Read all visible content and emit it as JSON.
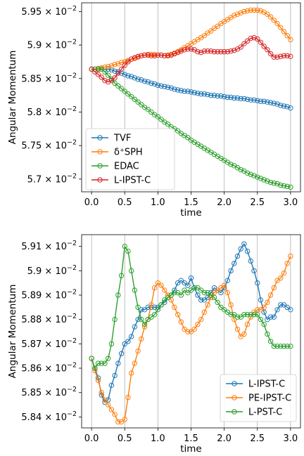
{
  "chart_data": [
    {
      "type": "line",
      "xlabel": "time",
      "ylabel": "Angular Momentum",
      "xlim": [
        -0.15,
        3.15
      ],
      "ylim": [
        0.05681,
        0.05963
      ],
      "x_ticks": [
        0.0,
        0.5,
        1.0,
        1.5,
        2.0,
        2.5,
        3.0
      ],
      "x_tick_labels": [
        "0.0",
        "0.5",
        "1.0",
        "1.5",
        "2.0",
        "2.5",
        "3.0"
      ],
      "y_ticks": [
        0.057,
        0.0575,
        0.058,
        0.0585,
        0.059,
        0.0595
      ],
      "y_tick_labels": [
        {
          "mantissa": "5.7",
          "exponent": "-2"
        },
        {
          "mantissa": "5.75",
          "exponent": "-2"
        },
        {
          "mantissa": "5.8",
          "exponent": "-2"
        },
        {
          "mantissa": "5.85",
          "exponent": "-2"
        },
        {
          "mantissa": "5.9",
          "exponent": "-2"
        },
        {
          "mantissa": "5.95",
          "exponent": "-2"
        }
      ],
      "grid": "vertical",
      "legend_position": "lower-left",
      "x": [
        0.0,
        0.05,
        0.1,
        0.15,
        0.2,
        0.25,
        0.3,
        0.35,
        0.4,
        0.45,
        0.5,
        0.55,
        0.6,
        0.65,
        0.7,
        0.75,
        0.8,
        0.85,
        0.9,
        0.95,
        1.0,
        1.05,
        1.1,
        1.15,
        1.2,
        1.25,
        1.3,
        1.35,
        1.4,
        1.45,
        1.5,
        1.55,
        1.6,
        1.65,
        1.7,
        1.75,
        1.8,
        1.85,
        1.9,
        1.95,
        2.0,
        2.05,
        2.1,
        2.15,
        2.2,
        2.25,
        2.3,
        2.35,
        2.4,
        2.45,
        2.5,
        2.55,
        2.6,
        2.65,
        2.7,
        2.75,
        2.8,
        2.85,
        2.9,
        2.95,
        3.0
      ],
      "series": [
        {
          "name": "TVF",
          "color": "#1f77b4",
          "values": [
            0.05864,
            0.05864,
            0.05864,
            0.05864,
            0.05864,
            0.05864,
            0.05863,
            0.05861,
            0.0586,
            0.05858,
            0.05856,
            0.05854,
            0.05853,
            0.05851,
            0.05849,
            0.05848,
            0.05846,
            0.05845,
            0.05843,
            0.05842,
            0.0584,
            0.05839,
            0.05838,
            0.05837,
            0.05836,
            0.05834,
            0.05833,
            0.05832,
            0.05831,
            0.05831,
            0.0583,
            0.05829,
            0.05828,
            0.05827,
            0.05827,
            0.05826,
            0.05825,
            0.05825,
            0.05824,
            0.05824,
            0.05823,
            0.05822,
            0.05822,
            0.05821,
            0.05821,
            0.0582,
            0.0582,
            0.05819,
            0.05818,
            0.05818,
            0.05817,
            0.05816,
            0.05816,
            0.05815,
            0.05814,
            0.05813,
            0.05812,
            0.0581,
            0.05809,
            0.05808,
            0.05806
          ]
        },
        {
          "name": "δ⁺SPH",
          "color": "#ff7f0e",
          "values": [
            0.05864,
            0.05864,
            0.05865,
            0.05866,
            0.05867,
            0.05868,
            0.05869,
            0.05871,
            0.05872,
            0.05874,
            0.05875,
            0.05877,
            0.05879,
            0.0588,
            0.05882,
            0.05884,
            0.05885,
            0.05886,
            0.05886,
            0.05886,
            0.05885,
            0.05885,
            0.05884,
            0.05885,
            0.05886,
            0.05888,
            0.0589,
            0.05893,
            0.05896,
            0.05899,
            0.05902,
            0.05905,
            0.05908,
            0.05911,
            0.05914,
            0.05918,
            0.05921,
            0.05925,
            0.05928,
            0.05932,
            0.05935,
            0.05938,
            0.05941,
            0.05944,
            0.05946,
            0.05948,
            0.0595,
            0.05951,
            0.05952,
            0.05952,
            0.05952,
            0.05951,
            0.05949,
            0.05946,
            0.05942,
            0.05937,
            0.05932,
            0.05926,
            0.0592,
            0.05914,
            0.05908
          ]
        },
        {
          "name": "EDAC",
          "color": "#2ca02c",
          "values": [
            0.05864,
            0.05864,
            0.05864,
            0.05864,
            0.0586,
            0.05855,
            0.05849,
            0.05843,
            0.05839,
            0.05835,
            0.05831,
            0.05827,
            0.05823,
            0.05819,
            0.05815,
            0.05811,
            0.05807,
            0.05804,
            0.058,
            0.05796,
            0.05793,
            0.05789,
            0.05785,
            0.05782,
            0.05778,
            0.05775,
            0.05772,
            0.05768,
            0.05765,
            0.05762,
            0.05758,
            0.05755,
            0.05752,
            0.05749,
            0.05746,
            0.05743,
            0.0574,
            0.05737,
            0.05734,
            0.05731,
            0.05728,
            0.05725,
            0.05722,
            0.0572,
            0.05717,
            0.05714,
            0.05712,
            0.05709,
            0.05707,
            0.05705,
            0.05703,
            0.05701,
            0.05699,
            0.05697,
            0.05695,
            0.05694,
            0.05693,
            0.05691,
            0.0569,
            0.05689,
            0.05688
          ]
        },
        {
          "name": "L-IPST-C",
          "color": "#d62728",
          "values": [
            0.05864,
            0.0586,
            0.05856,
            0.05852,
            0.05847,
            0.05845,
            0.05847,
            0.05851,
            0.05858,
            0.05864,
            0.0587,
            0.05875,
            0.05879,
            0.05881,
            0.05883,
            0.05884,
            0.05885,
            0.05885,
            0.05884,
            0.05884,
            0.05885,
            0.05885,
            0.05884,
            0.05884,
            0.05885,
            0.05887,
            0.05889,
            0.05891,
            0.05893,
            0.05894,
            0.05894,
            0.05893,
            0.0589,
            0.05889,
            0.05891,
            0.05891,
            0.05891,
            0.0589,
            0.0589,
            0.0589,
            0.0589,
            0.0589,
            0.05891,
            0.05892,
            0.05894,
            0.05897,
            0.05902,
            0.05906,
            0.0591,
            0.05911,
            0.05909,
            0.05904,
            0.05898,
            0.05893,
            0.05887,
            0.05882,
            0.05882,
            0.05883,
            0.05884,
            0.05884,
            0.05883
          ]
        }
      ]
    },
    {
      "type": "line",
      "xlabel": "time",
      "ylabel": "Angular Momentum",
      "xlim": [
        -0.15,
        3.15
      ],
      "ylim": [
        0.058355,
        0.059148
      ],
      "x_ticks": [
        0.0,
        0.5,
        1.0,
        1.5,
        2.0,
        2.5,
        3.0
      ],
      "x_tick_labels": [
        "0.0",
        "0.5",
        "1.0",
        "1.5",
        "2.0",
        "2.5",
        "3.0"
      ],
      "y_ticks": [
        0.0584,
        0.0585,
        0.0586,
        0.0587,
        0.0588,
        0.0589,
        0.059,
        0.0591
      ],
      "y_tick_labels": [
        {
          "mantissa": "5.84",
          "exponent": "-2"
        },
        {
          "mantissa": "5.85",
          "exponent": "-2"
        },
        {
          "mantissa": "5.86",
          "exponent": "-2"
        },
        {
          "mantissa": "5.87",
          "exponent": "-2"
        },
        {
          "mantissa": "5.88",
          "exponent": "-2"
        },
        {
          "mantissa": "5.89",
          "exponent": "-2"
        },
        {
          "mantissa": "5.9",
          "exponent": "-2"
        },
        {
          "mantissa": "5.91",
          "exponent": "-2"
        }
      ],
      "grid": "vertical",
      "legend_position": "lower-right",
      "series": [
        {
          "name": "L-IPST-C",
          "color": "#1f77b4",
          "x": [
            0.0,
            0.05,
            0.1,
            0.15,
            0.2,
            0.25,
            0.3,
            0.35,
            0.4,
            0.45,
            0.5,
            0.55,
            0.6,
            0.65,
            0.7,
            0.75,
            0.8,
            0.85,
            0.9,
            0.95,
            1.0,
            1.05,
            1.1,
            1.15,
            1.2,
            1.25,
            1.3,
            1.35,
            1.4,
            1.45,
            1.5,
            1.55,
            1.6,
            1.65,
            1.7,
            1.75,
            1.8,
            1.85,
            1.9,
            1.95,
            2.0,
            2.05,
            2.1,
            2.15,
            2.2,
            2.25,
            2.3,
            2.35,
            2.4,
            2.45,
            2.5,
            2.55,
            2.6,
            2.65,
            2.7,
            2.75,
            2.8,
            2.85,
            2.9,
            2.95,
            3.0
          ],
          "values": [
            0.05864,
            0.0586,
            0.05856,
            0.05849,
            0.05846,
            0.05847,
            0.05853,
            0.05857,
            0.05862,
            0.05866,
            0.0587,
            0.05871,
            0.05873,
            0.05877,
            0.0588,
            0.05884,
            0.05884,
            0.05885,
            0.05885,
            0.05885,
            0.05885,
            0.05886,
            0.05887,
            0.05889,
            0.0589,
            0.05892,
            0.05895,
            0.05896,
            0.05895,
            0.05894,
            0.05897,
            0.05893,
            0.0589,
            0.05888,
            0.05888,
            0.05889,
            0.05891,
            0.05893,
            0.05892,
            0.05891,
            0.05893,
            0.05896,
            0.059,
            0.05903,
            0.05906,
            0.05909,
            0.05911,
            0.05908,
            0.05904,
            0.059,
            0.05895,
            0.05888,
            0.05883,
            0.0588,
            0.05881,
            0.05881,
            0.05884,
            0.05886,
            0.05886,
            0.05885,
            0.05884
          ]
        },
        {
          "name": "PE-IPST-C",
          "color": "#ff7f0e",
          "x": [
            0.0,
            0.05,
            0.1,
            0.15,
            0.2,
            0.25,
            0.3,
            0.35,
            0.4,
            0.45,
            0.5,
            0.55,
            0.6,
            0.65,
            0.7,
            0.75,
            0.8,
            0.85,
            0.9,
            0.95,
            1.0,
            1.05,
            1.1,
            1.15,
            1.2,
            1.25,
            1.3,
            1.35,
            1.4,
            1.45,
            1.5,
            1.55,
            1.6,
            1.65,
            1.7,
            1.75,
            1.8,
            1.85,
            1.9,
            1.95,
            2.0,
            2.05,
            2.1,
            2.15,
            2.2,
            2.25,
            2.3,
            2.35,
            2.4,
            2.45,
            2.5,
            2.55,
            2.6,
            2.65,
            2.7,
            2.75,
            2.8,
            2.85,
            2.9,
            2.95,
            3.0
          ],
          "values": [
            0.05864,
            0.05859,
            0.05855,
            0.0585,
            0.05847,
            0.05845,
            0.05843,
            0.05841,
            0.05838,
            0.05838,
            0.05839,
            0.05848,
            0.05858,
            0.05862,
            0.05867,
            0.05872,
            0.05877,
            0.0588,
            0.05886,
            0.05893,
            0.05895,
            0.05894,
            0.05892,
            0.0589,
            0.05888,
            0.05885,
            0.05882,
            0.05879,
            0.05876,
            0.05875,
            0.05875,
            0.05876,
            0.05878,
            0.0588,
            0.05883,
            0.05886,
            0.05889,
            0.05891,
            0.05892,
            0.05893,
            0.05894,
            0.05891,
            0.05886,
            0.0588,
            0.05876,
            0.05873,
            0.05874,
            0.05878,
            0.05881,
            0.05883,
            0.05884,
            0.05884,
            0.05885,
            0.05887,
            0.0589,
            0.05893,
            0.05896,
            0.05897,
            0.05899,
            0.05903,
            0.05906
          ]
        },
        {
          "name": "L-PST-C",
          "color": "#2ca02c",
          "x": [
            0.0,
            0.05,
            0.1,
            0.15,
            0.2,
            0.25,
            0.3,
            0.35,
            0.4,
            0.45,
            0.5,
            0.55,
            0.6,
            0.65,
            0.7,
            0.75,
            0.8,
            0.85,
            0.9,
            0.95,
            1.0,
            1.05,
            1.1,
            1.15,
            1.2,
            1.25,
            1.3,
            1.35,
            1.4,
            1.45,
            1.5,
            1.55,
            1.6,
            1.65,
            1.7,
            1.75,
            1.8,
            1.85,
            1.9,
            1.95,
            2.0,
            2.05,
            2.1,
            2.15,
            2.2,
            2.25,
            2.3,
            2.35,
            2.4,
            2.45,
            2.5,
            2.55,
            2.6,
            2.65,
            2.7,
            2.75,
            2.8,
            2.85,
            2.9,
            2.95,
            3.0
          ],
          "values": [
            0.05864,
            0.0586,
            0.05862,
            0.05862,
            0.05862,
            0.05864,
            0.0587,
            0.0588,
            0.0589,
            0.05898,
            0.0591,
            0.05908,
            0.059,
            0.05892,
            0.05885,
            0.0588,
            0.05878,
            0.0588,
            0.05881,
            0.05882,
            0.05884,
            0.05886,
            0.05888,
            0.05889,
            0.0589,
            0.05891,
            0.05891,
            0.0589,
            0.05892,
            0.05891,
            0.05892,
            0.05893,
            0.05893,
            0.05892,
            0.05891,
            0.05891,
            0.0589,
            0.05889,
            0.05887,
            0.05885,
            0.05884,
            0.05883,
            0.05882,
            0.05882,
            0.05881,
            0.05881,
            0.05882,
            0.05882,
            0.05882,
            0.05882,
            0.05882,
            0.0588,
            0.05878,
            0.05874,
            0.05871,
            0.05869,
            0.05869,
            0.05869,
            0.05869,
            0.05869,
            0.05869
          ]
        }
      ]
    }
  ]
}
